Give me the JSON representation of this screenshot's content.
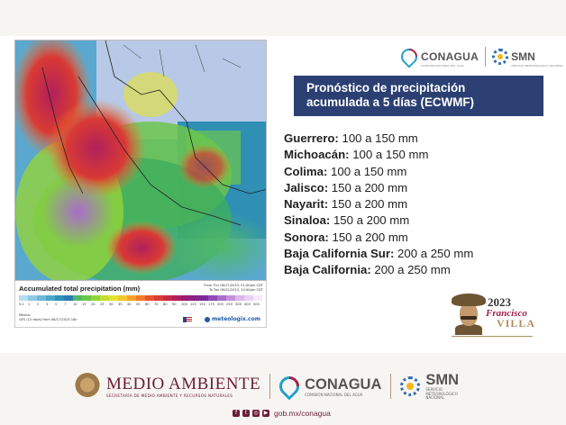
{
  "header": {
    "conagua_label": "CONAGUA",
    "conagua_sub": "COMISIÓN NACIONAL DEL AGUA",
    "smn_label": "SMN",
    "smn_sub": "SERVICIO METEOROLÓGICO NACIONAL"
  },
  "title": {
    "line1": "Pronóstico de precipitación",
    "line2": "acumulada a 5 días (ECWMF)"
  },
  "forecast": [
    {
      "state": "Guerrero:",
      "range": " 100 a 150 mm"
    },
    {
      "state": "Michoacán:",
      "range": " 100 a 150 mm"
    },
    {
      "state": "Colima:",
      "range": " 100 a 150 mm"
    },
    {
      "state": "Jalisco:",
      "range": " 150 a 200 mm"
    },
    {
      "state": "Nayarit:",
      "range": " 150 a 200 mm"
    },
    {
      "state": "Sinaloa:",
      "range": " 150 a 200 mm"
    },
    {
      "state": "Sonora:",
      "range": " 150 a 200 mm"
    },
    {
      "state": "Baja California Sur:",
      "range": " 200 a 250 mm"
    },
    {
      "state": "Baja California:",
      "range": " 200 a 250 mm"
    }
  ],
  "map_legend": {
    "title": "Accumulated total precipitation (mm)",
    "date_from": "From Thu 08/17/2023, 01:00pm CDT",
    "date_to": "To Tue 08/22/2023, 10:00pm CDT",
    "ticks": [
      "0.1",
      "1",
      "2",
      "3",
      "5",
      "7",
      "10",
      "15",
      "20",
      "25",
      "30",
      "35",
      "40",
      "50",
      "60",
      "70",
      "80",
      "90",
      "100",
      "125",
      "150",
      "175",
      "200",
      "250",
      "300",
      "400",
      "500"
    ],
    "colors": [
      "#b7dcef",
      "#8fc8e8",
      "#6fb7d6",
      "#4aa6c9",
      "#2f8fb5",
      "#2c7ab0",
      "#4fb86b",
      "#6cc64c",
      "#94d33b",
      "#c3de32",
      "#e7e22f",
      "#f4c62c",
      "#f7a12b",
      "#f37a2a",
      "#e8542b",
      "#d93a33",
      "#c62a46",
      "#b1205c",
      "#9a1a73",
      "#8a2088",
      "#7b2b9e",
      "#8e4ab6",
      "#a96dcb",
      "#c391dc",
      "#dcb7ec",
      "#ead1f4",
      "#f6e9fa"
    ],
    "footer_line1": "Mexico",
    "footer_line2": "GFS (15 days) from 08/17/2023 18z",
    "brand": "meteologix.com"
  },
  "emblem": {
    "year": "2023",
    "name_first": "Francisco",
    "name_last": "VILLA"
  },
  "footer": {
    "ma_title": "MEDIO AMBIENTE",
    "ma_sub": "SECRETARÍA DE MEDIO AMBIENTE Y RECURSOS NATURALES",
    "conagua_label": "CONAGUA",
    "conagua_sub": "COMISIÓN NACIONAL DEL AGUA",
    "smn_label": "SMN",
    "smn_sub1": "SERVICIO",
    "smn_sub2": "METEOROLÓGICO",
    "smn_sub3": "NACIONAL",
    "url": "gob.mx/conagua",
    "social_icons": [
      "facebook-icon",
      "twitter-icon",
      "instagram-icon",
      "youtube-icon"
    ]
  }
}
